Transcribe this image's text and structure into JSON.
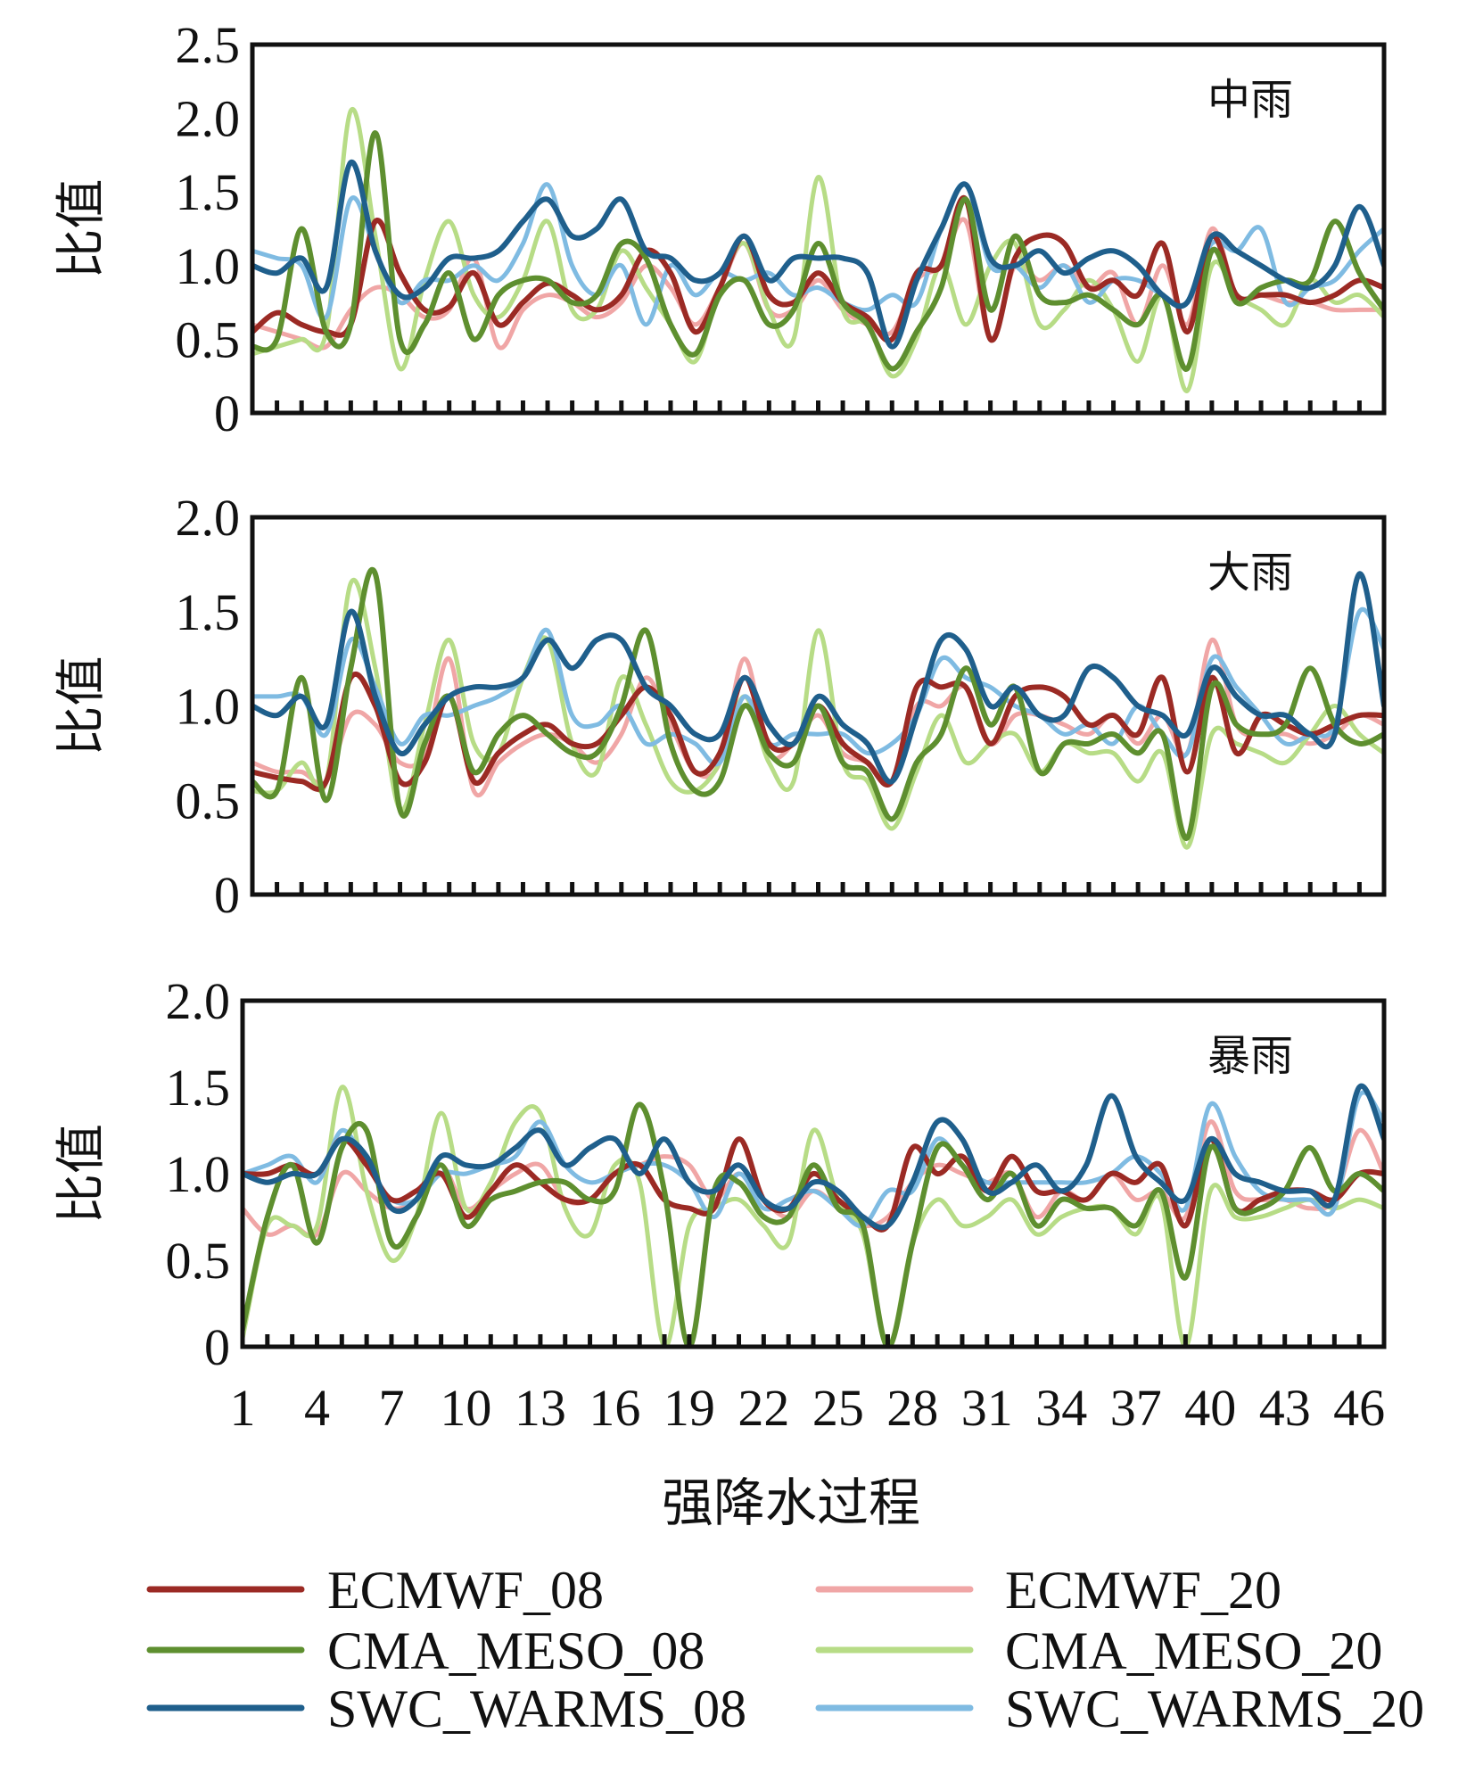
{
  "chart_data": [
    {
      "type": "line",
      "title": "中雨",
      "ylabel": "比值",
      "ylim": [
        0,
        2.5
      ],
      "yticks": [
        "0",
        "0.5",
        "1.0",
        "1.5",
        "2.0",
        "2.5"
      ],
      "xlabel": "强降水过程",
      "xlim": [
        1,
        47
      ],
      "x_ticks": [
        "1",
        "4",
        "7",
        "10",
        "13",
        "16",
        "19",
        "22",
        "25",
        "28",
        "31",
        "34",
        "37",
        "40",
        "43",
        "46"
      ],
      "series": [
        {
          "name": "ECMWF_08",
          "values": [
            0.55,
            0.68,
            0.6,
            0.55,
            0.6,
            1.3,
            0.95,
            0.7,
            0.72,
            0.95,
            0.6,
            0.75,
            0.88,
            0.8,
            0.7,
            0.8,
            1.1,
            0.95,
            0.55,
            0.85,
            1.2,
            0.8,
            0.75,
            0.95,
            0.75,
            0.65,
            0.5,
            0.95,
            1.0,
            1.45,
            0.5,
            1.05,
            1.2,
            1.15,
            0.85,
            0.9,
            0.8,
            1.15,
            0.55,
            1.2,
            0.8,
            0.8,
            0.8,
            0.75,
            0.8,
            0.9,
            0.85
          ]
        },
        {
          "name": "ECMWF_20",
          "values": [
            0.6,
            0.55,
            0.5,
            0.45,
            0.7,
            0.85,
            0.8,
            0.65,
            0.7,
            1.05,
            0.45,
            0.7,
            0.8,
            0.75,
            0.65,
            0.75,
            1.0,
            0.85,
            0.6,
            0.85,
            1.15,
            0.7,
            0.7,
            0.9,
            0.7,
            0.6,
            0.55,
            0.9,
            1.0,
            1.3,
            0.5,
            1.0,
            0.9,
            1.0,
            0.85,
            0.95,
            0.6,
            1.0,
            0.6,
            1.25,
            0.8,
            0.8,
            0.75,
            0.75,
            0.7,
            0.7,
            0.7
          ]
        },
        {
          "name": "CMA_MESO_08",
          "values": [
            0.45,
            0.5,
            1.25,
            0.55,
            0.6,
            1.9,
            0.5,
            0.6,
            0.95,
            0.5,
            0.8,
            0.9,
            0.9,
            0.75,
            0.8,
            1.15,
            1.05,
            0.6,
            0.4,
            0.8,
            0.9,
            0.6,
            0.7,
            1.15,
            0.75,
            0.6,
            0.3,
            0.55,
            0.85,
            1.45,
            0.7,
            1.2,
            0.8,
            0.75,
            0.8,
            0.7,
            0.6,
            0.8,
            0.3,
            1.1,
            0.75,
            0.85,
            0.9,
            0.9,
            1.3,
            0.95,
            0.7
          ]
        },
        {
          "name": "CMA_MESO_20",
          "values": [
            0.4,
            0.45,
            0.5,
            0.55,
            2.05,
            1.2,
            0.3,
            0.9,
            1.3,
            0.8,
            0.65,
            0.9,
            1.3,
            0.7,
            0.7,
            1.1,
            0.85,
            0.6,
            0.35,
            0.85,
            1.15,
            0.7,
            0.5,
            1.6,
            0.7,
            0.6,
            0.25,
            0.5,
            1.0,
            0.6,
            1.0,
            1.15,
            0.6,
            0.7,
            0.9,
            0.7,
            0.35,
            0.8,
            0.15,
            1.0,
            0.8,
            0.7,
            0.6,
            0.9,
            0.75,
            0.8,
            0.65
          ]
        },
        {
          "name": "SWC_WARMS_08",
          "values": [
            1.0,
            0.95,
            1.05,
            0.85,
            1.7,
            1.1,
            0.8,
            0.85,
            1.05,
            1.05,
            1.1,
            1.3,
            1.45,
            1.2,
            1.25,
            1.45,
            1.1,
            1.05,
            0.9,
            0.95,
            1.2,
            0.9,
            1.05,
            1.05,
            1.05,
            0.95,
            0.45,
            0.9,
            1.25,
            1.55,
            1.05,
            1.0,
            1.1,
            0.95,
            1.05,
            1.1,
            1.0,
            0.8,
            0.75,
            1.2,
            1.1,
            1.0,
            0.9,
            0.85,
            1.0,
            1.4,
            1.0
          ]
        },
        {
          "name": "SWC_WARMS_20",
          "values": [
            1.1,
            1.05,
            1.0,
            0.65,
            1.45,
            1.1,
            0.75,
            0.9,
            0.9,
            1.0,
            0.9,
            1.15,
            1.55,
            1.0,
            0.8,
            1.0,
            0.6,
            1.0,
            0.8,
            0.95,
            0.9,
            0.95,
            0.8,
            0.85,
            0.75,
            0.7,
            0.8,
            0.75,
            1.25,
            1.55,
            1.0,
            1.0,
            0.85,
            1.0,
            0.75,
            0.9,
            0.9,
            0.8,
            0.75,
            1.15,
            1.1,
            1.25,
            0.75,
            0.85,
            0.9,
            1.1,
            1.25
          ]
        }
      ]
    },
    {
      "type": "line",
      "title": "大雨",
      "ylabel": "比值",
      "ylim": [
        0,
        2.0
      ],
      "yticks": [
        "0",
        "0.5",
        "1.0",
        "1.5",
        "2.0"
      ],
      "xlabel": "强降水过程",
      "xlim": [
        1,
        47
      ],
      "x_ticks": [
        "1",
        "4",
        "7",
        "10",
        "13",
        "16",
        "19",
        "22",
        "25",
        "28",
        "31",
        "34",
        "37",
        "40",
        "43",
        "46"
      ],
      "series": [
        {
          "name": "ECMWF_08",
          "values": [
            0.65,
            0.62,
            0.6,
            0.6,
            1.15,
            1.0,
            0.6,
            0.7,
            1.05,
            0.6,
            0.75,
            0.85,
            0.9,
            0.8,
            0.8,
            0.95,
            1.1,
            0.95,
            0.65,
            0.75,
            1.15,
            0.8,
            0.8,
            1.0,
            0.8,
            0.7,
            0.6,
            1.1,
            1.1,
            1.1,
            0.8,
            1.05,
            1.1,
            1.05,
            0.9,
            0.95,
            0.85,
            1.15,
            0.65,
            1.15,
            0.75,
            0.95,
            0.9,
            0.85,
            0.9,
            0.95,
            0.95
          ]
        },
        {
          "name": "ECMWF_20",
          "values": [
            0.7,
            0.65,
            0.65,
            0.6,
            0.95,
            0.9,
            0.7,
            0.75,
            1.25,
            0.55,
            0.7,
            0.8,
            0.85,
            0.8,
            0.7,
            0.85,
            1.15,
            0.9,
            0.65,
            0.7,
            1.25,
            0.75,
            0.8,
            0.95,
            0.75,
            0.7,
            0.6,
            1.0,
            1.0,
            1.1,
            0.8,
            0.95,
            0.95,
            0.9,
            0.85,
            0.95,
            0.8,
            0.95,
            0.75,
            1.35,
            0.9,
            0.85,
            0.85,
            0.8,
            0.85,
            0.95,
            0.9
          ]
        },
        {
          "name": "CMA_MESO_08",
          "values": [
            0.6,
            0.55,
            1.15,
            0.5,
            1.2,
            1.7,
            0.45,
            0.8,
            1.05,
            0.65,
            0.85,
            0.95,
            0.85,
            0.75,
            0.75,
            1.0,
            1.4,
            0.8,
            0.55,
            0.6,
            1.0,
            0.75,
            0.7,
            1.0,
            0.7,
            0.65,
            0.4,
            0.7,
            0.85,
            1.2,
            0.9,
            1.1,
            0.65,
            0.8,
            0.8,
            0.85,
            0.75,
            0.85,
            0.3,
            1.1,
            0.9,
            0.85,
            0.9,
            1.2,
            0.9,
            0.8,
            0.85
          ]
        },
        {
          "name": "CMA_MESO_20",
          "values": [
            0.55,
            0.55,
            0.7,
            0.6,
            1.65,
            1.2,
            0.45,
            0.9,
            1.35,
            0.8,
            0.75,
            1.15,
            1.35,
            0.8,
            0.65,
            1.15,
            0.9,
            0.6,
            0.55,
            0.7,
            1.05,
            0.7,
            0.6,
            1.4,
            0.7,
            0.6,
            0.35,
            0.65,
            0.95,
            0.7,
            0.8,
            0.85,
            0.65,
            0.8,
            0.75,
            0.75,
            0.6,
            0.75,
            0.25,
            0.85,
            0.8,
            0.75,
            0.7,
            0.85,
            1.0,
            0.85,
            0.75
          ]
        },
        {
          "name": "SWC_WARMS_08",
          "values": [
            1.0,
            0.95,
            1.05,
            0.9,
            1.5,
            1.05,
            0.75,
            0.9,
            1.05,
            1.1,
            1.1,
            1.15,
            1.35,
            1.2,
            1.35,
            1.35,
            1.1,
            1.0,
            0.85,
            0.85,
            1.15,
            0.9,
            0.8,
            1.05,
            0.9,
            0.8,
            0.6,
            0.95,
            1.35,
            1.3,
            1.0,
            1.1,
            0.95,
            0.95,
            1.2,
            1.15,
            1.0,
            0.95,
            0.85,
            1.2,
            1.05,
            0.95,
            0.95,
            0.85,
            0.85,
            1.7,
            1.0
          ]
        },
        {
          "name": "SWC_WARMS_20",
          "values": [
            1.05,
            1.05,
            1.05,
            0.85,
            1.35,
            1.1,
            0.8,
            0.95,
            0.95,
            1.0,
            1.05,
            1.15,
            1.4,
            0.95,
            0.9,
            1.0,
            0.8,
            0.85,
            0.8,
            0.7,
            1.05,
            0.8,
            0.85,
            0.85,
            0.85,
            0.75,
            0.8,
            0.95,
            1.25,
            1.15,
            1.1,
            1.0,
            0.95,
            0.85,
            0.9,
            0.8,
            1.0,
            0.85,
            0.75,
            1.25,
            1.1,
            0.95,
            0.8,
            0.85,
            0.9,
            1.5,
            1.3
          ]
        }
      ]
    },
    {
      "type": "line",
      "title": "暴雨",
      "ylabel": "比值",
      "ylim": [
        0,
        2.0
      ],
      "yticks": [
        "0",
        "0.5",
        "1.0",
        "1.5",
        "2.0"
      ],
      "xlabel": "强降水过程",
      "xlim": [
        1,
        47
      ],
      "x_ticks": [
        "1",
        "4",
        "7",
        "10",
        "13",
        "16",
        "19",
        "22",
        "25",
        "28",
        "31",
        "34",
        "37",
        "40",
        "43",
        "46"
      ],
      "series": [
        {
          "name": "ECMWF_08",
          "values": [
            1.0,
            1.0,
            1.05,
            1.0,
            1.2,
            1.05,
            0.85,
            0.9,
            1.0,
            0.75,
            0.9,
            1.05,
            0.95,
            0.85,
            0.85,
            1.0,
            1.05,
            0.85,
            0.8,
            0.8,
            1.2,
            0.85,
            0.8,
            1.0,
            0.85,
            0.75,
            0.7,
            1.15,
            1.0,
            1.1,
            0.9,
            1.1,
            0.9,
            0.9,
            0.85,
            1.0,
            0.95,
            1.05,
            0.7,
            1.2,
            0.8,
            0.85,
            0.9,
            0.9,
            0.85,
            1.0,
            1.0
          ]
        },
        {
          "name": "ECMWF_20",
          "values": [
            0.8,
            0.65,
            0.7,
            0.65,
            1.0,
            0.9,
            0.8,
            0.85,
            1.05,
            0.8,
            0.9,
            1.0,
            1.05,
            0.85,
            0.85,
            1.0,
            1.05,
            1.1,
            1.05,
            0.85,
            1.0,
            0.85,
            0.75,
            0.9,
            0.8,
            0.7,
            0.75,
            0.95,
            1.05,
            1.0,
            0.95,
            1.0,
            0.75,
            0.9,
            0.85,
            1.0,
            0.85,
            0.9,
            0.75,
            1.3,
            0.9,
            0.85,
            0.85,
            0.8,
            0.85,
            1.25,
            1.0
          ]
        },
        {
          "name": "CMA_MESO_08",
          "values": [
            0.1,
            0.75,
            1.05,
            0.6,
            1.15,
            1.25,
            0.6,
            0.75,
            1.05,
            0.7,
            0.85,
            0.9,
            0.95,
            0.95,
            0.85,
            0.9,
            1.4,
            0.9,
            0.0,
            0.9,
            0.95,
            0.75,
            0.75,
            1.05,
            0.8,
            0.7,
            0.0,
            0.6,
            1.15,
            1.05,
            0.85,
            1.0,
            0.7,
            0.85,
            0.8,
            0.8,
            0.7,
            0.9,
            0.4,
            1.15,
            0.8,
            0.8,
            0.9,
            1.15,
            0.9,
            1.0,
            0.9
          ]
        },
        {
          "name": "CMA_MESO_20",
          "values": [
            0.05,
            0.7,
            0.7,
            0.7,
            1.5,
            0.9,
            0.5,
            0.75,
            1.35,
            0.8,
            0.95,
            1.3,
            1.35,
            0.8,
            0.65,
            1.05,
            0.95,
            0.0,
            0.7,
            0.8,
            0.85,
            0.7,
            0.6,
            1.25,
            0.85,
            0.65,
            0.0,
            0.6,
            0.85,
            0.7,
            0.75,
            0.85,
            0.65,
            0.75,
            0.8,
            0.8,
            0.65,
            0.85,
            0.0,
            0.9,
            0.75,
            0.75,
            0.8,
            0.85,
            0.8,
            0.85,
            0.8
          ]
        },
        {
          "name": "SWC_WARMS_08",
          "values": [
            1.0,
            0.95,
            1.0,
            1.0,
            1.2,
            1.1,
            0.8,
            0.85,
            1.1,
            1.05,
            1.05,
            1.15,
            1.25,
            1.05,
            1.15,
            1.2,
            1.0,
            1.2,
            0.95,
            0.9,
            1.05,
            0.85,
            0.8,
            0.95,
            0.9,
            0.75,
            0.7,
            0.95,
            1.3,
            1.2,
            0.9,
            0.95,
            1.05,
            0.9,
            1.05,
            1.45,
            1.1,
            0.95,
            0.85,
            1.2,
            1.0,
            0.95,
            0.9,
            0.9,
            0.85,
            1.5,
            1.2
          ]
        },
        {
          "name": "SWC_WARMS_20",
          "values": [
            1.0,
            1.05,
            1.1,
            0.95,
            1.25,
            1.05,
            0.85,
            0.85,
            1.0,
            1.0,
            1.05,
            1.1,
            1.3,
            1.05,
            0.95,
            1.0,
            1.05,
            1.05,
            0.95,
            0.75,
            1.0,
            0.8,
            0.85,
            0.9,
            0.8,
            0.7,
            0.9,
            0.9,
            1.2,
            1.05,
            0.95,
            0.95,
            0.95,
            0.95,
            0.95,
            1.0,
            1.1,
            1.0,
            0.8,
            1.4,
            1.1,
            0.9,
            0.85,
            0.85,
            0.8,
            1.45,
            1.3
          ]
        }
      ]
    }
  ],
  "xlabel": "强降水过程",
  "legend": [
    {
      "name": "ECMWF_08",
      "color": "#9b2a24"
    },
    {
      "name": "ECMWF_20",
      "color": "#f0a6a6"
    },
    {
      "name": "CMA_MESO_08",
      "color": "#5e8f2f"
    },
    {
      "name": "CMA_MESO_20",
      "color": "#b7dc86"
    },
    {
      "name": "SWC_WARMS_08",
      "color": "#1f5f8c"
    },
    {
      "name": "SWC_WARMS_20",
      "color": "#7fbbe2"
    }
  ]
}
